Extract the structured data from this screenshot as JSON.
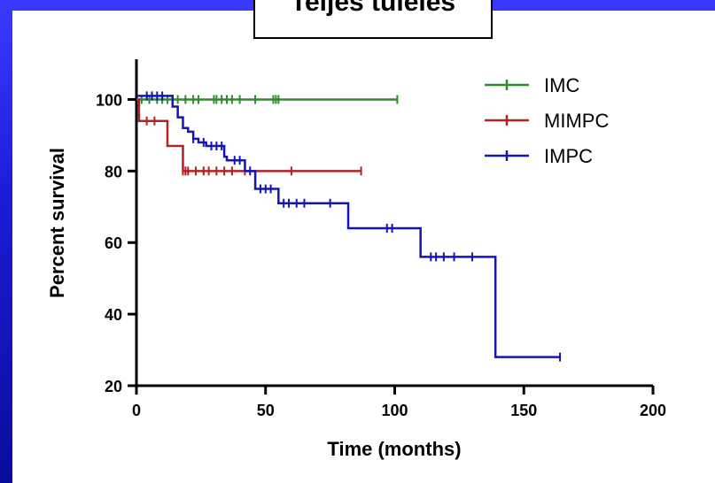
{
  "header": {
    "title": "Teljes túlélés"
  },
  "colors": {
    "background": "#1c1cd8",
    "panel": "#ffffff"
  },
  "chart_data": {
    "type": "line",
    "subtype": "kaplan-meier",
    "title": "Teljes túlélés",
    "xlabel": "Time (months)",
    "ylabel": "Percent survival",
    "xlim": [
      0,
      200
    ],
    "ylim": [
      20,
      110
    ],
    "xticks": [
      0,
      50,
      100,
      150,
      200
    ],
    "yticks": [
      20,
      40,
      60,
      80,
      100
    ],
    "grid": false,
    "legend_position": "top-right",
    "series": [
      {
        "name": "IMC",
        "color": "#2e8b2e",
        "steps": [
          [
            0,
            100
          ],
          [
            101,
            100
          ]
        ],
        "censored": [
          2,
          5,
          8,
          10,
          12,
          14,
          16,
          19,
          22,
          24,
          30,
          31,
          33,
          35,
          37,
          40,
          46,
          53,
          54,
          55,
          101
        ]
      },
      {
        "name": "MIMPC",
        "color": "#b22222",
        "steps": [
          [
            0,
            100
          ],
          [
            1,
            94
          ],
          [
            12,
            94
          ],
          [
            12,
            87
          ],
          [
            18,
            87
          ],
          [
            18,
            80
          ],
          [
            87,
            80
          ]
        ],
        "censored": [
          4,
          7,
          18,
          19,
          20,
          23,
          26,
          28,
          31,
          34,
          37,
          42,
          60,
          87
        ]
      },
      {
        "name": "IMPC",
        "color": "#1515b4",
        "steps": [
          [
            0,
            101
          ],
          [
            12,
            101
          ],
          [
            14,
            98
          ],
          [
            16,
            95
          ],
          [
            18,
            92
          ],
          [
            20,
            91
          ],
          [
            22,
            89
          ],
          [
            24,
            88
          ],
          [
            27,
            87
          ],
          [
            33,
            87
          ],
          [
            34,
            84
          ],
          [
            35,
            83
          ],
          [
            41,
            83
          ],
          [
            42,
            80
          ],
          [
            46,
            80
          ],
          [
            46,
            75
          ],
          [
            55,
            75
          ],
          [
            55,
            71
          ],
          [
            82,
            71
          ],
          [
            82,
            64
          ],
          [
            110,
            64
          ],
          [
            110,
            56
          ],
          [
            139,
            56
          ],
          [
            139,
            28
          ],
          [
            164,
            28
          ]
        ],
        "censored": [
          4,
          6,
          8,
          10,
          22,
          26,
          29,
          31,
          33,
          38,
          40,
          44,
          48,
          50,
          52,
          57,
          59,
          62,
          65,
          75,
          97,
          99,
          114,
          116,
          119,
          123,
          130,
          164
        ]
      }
    ]
  }
}
